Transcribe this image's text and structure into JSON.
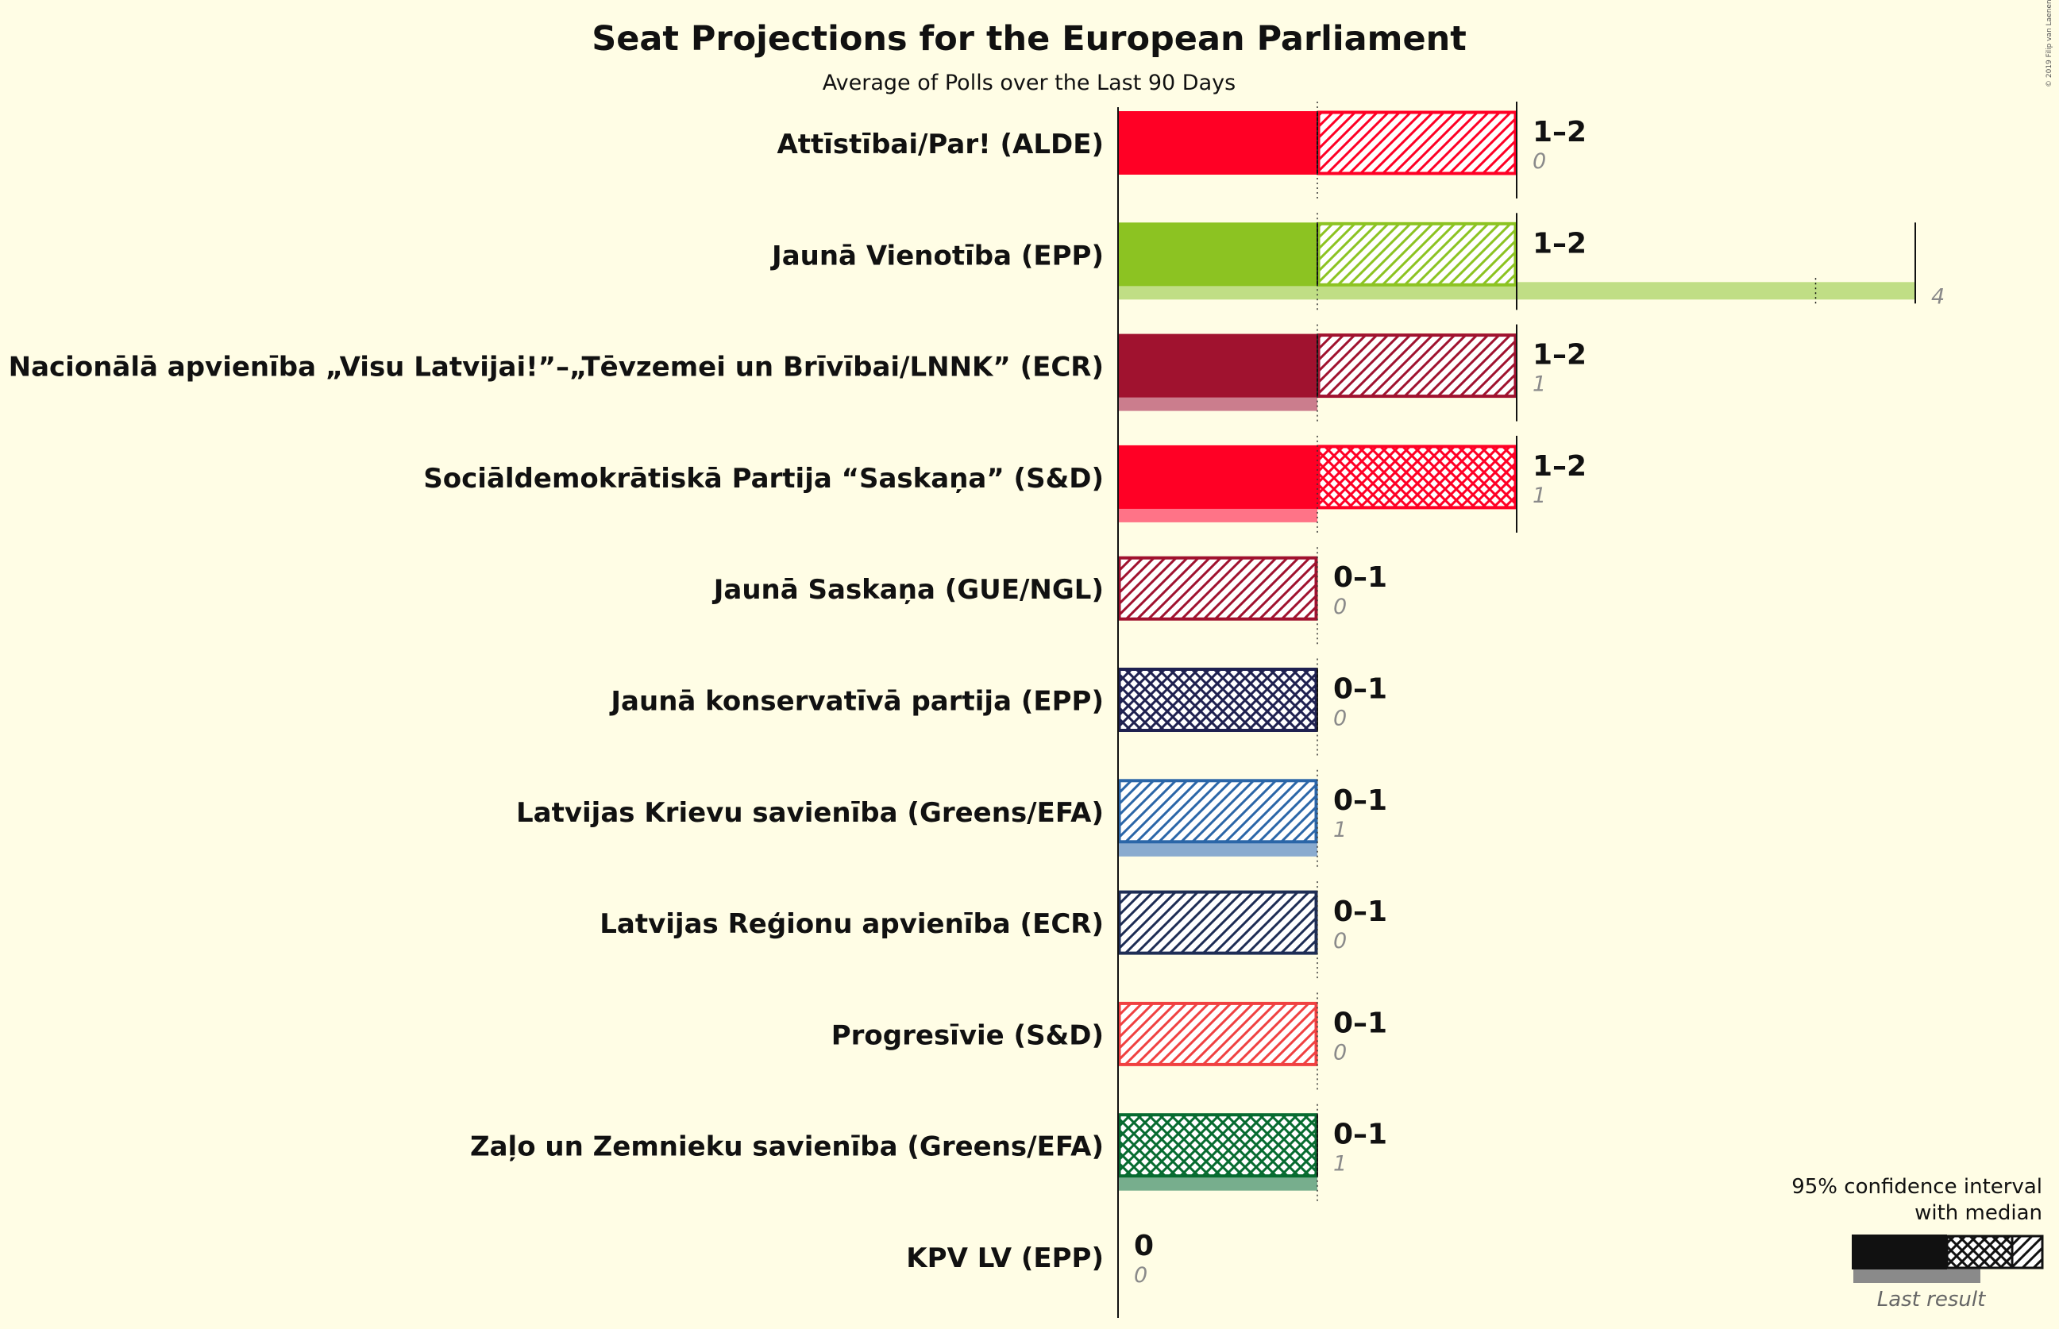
{
  "chart_data": {
    "type": "bar",
    "title": "Seat Projections for the European Parliament",
    "subtitle": "Average of Polls over the Last 90 Days",
    "xlim": [
      0,
      4
    ],
    "parties": [
      {
        "name": "Attīstībai/Par! (ALDE)",
        "low": 1,
        "median": 1,
        "high": 2,
        "last": 0,
        "range_label": "1–2",
        "last_label": "0",
        "color": "#FF0025",
        "pattern": "hatch"
      },
      {
        "name": "Jaunā Vienotība (EPP)",
        "low": 1,
        "median": 1,
        "high": 2,
        "last": 4,
        "range_label": "1–2",
        "last_label": "4",
        "color": "#8CC322",
        "pattern": "hatch"
      },
      {
        "name": "Nacionālā apvienība „Visu Latvijai!”–„Tēvzemei un Brīvībai/LNNK” (ECR)",
        "low": 1,
        "median": 1,
        "high": 2,
        "last": 1,
        "range_label": "1–2",
        "last_label": "1",
        "color": "#A0122F",
        "pattern": "hatch"
      },
      {
        "name": "Sociāldemokrātiskā Partija “Saskaņa” (S&D)",
        "low": 1,
        "median": 2,
        "high": 2,
        "last": 1,
        "range_label": "1–2",
        "last_label": "1",
        "color": "#FF0025",
        "pattern": "cross"
      },
      {
        "name": "Jaunā Saskaņa (GUE/NGL)",
        "low": 0,
        "median": 0,
        "high": 1,
        "last": 0,
        "range_label": "0–1",
        "last_label": "0",
        "color": "#A0122F",
        "pattern": "hatch"
      },
      {
        "name": "Jaunā konservatīvā partija (EPP)",
        "low": 0,
        "median": 1,
        "high": 1,
        "last": 0,
        "range_label": "0–1",
        "last_label": "0",
        "color": "#1F2150",
        "pattern": "cross"
      },
      {
        "name": "Latvijas Krievu savienība (Greens/EFA)",
        "low": 0,
        "median": 0,
        "high": 1,
        "last": 1,
        "range_label": "0–1",
        "last_label": "1",
        "color": "#2B66A8",
        "pattern": "hatch"
      },
      {
        "name": "Latvijas Reģionu apvienība (ECR)",
        "low": 0,
        "median": 0,
        "high": 1,
        "last": 0,
        "range_label": "0–1",
        "last_label": "0",
        "color": "#1E2D55",
        "pattern": "hatch"
      },
      {
        "name": "Progresīvie (S&D)",
        "low": 0,
        "median": 0,
        "high": 1,
        "last": 0,
        "range_label": "0–1",
        "last_label": "0",
        "color": "#F04141",
        "pattern": "hatch"
      },
      {
        "name": "Zaļo un Zemnieku savienība (Greens/EFA)",
        "low": 0,
        "median": 1,
        "high": 1,
        "last": 1,
        "range_label": "0–1",
        "last_label": "1",
        "color": "#076B30",
        "pattern": "cross"
      },
      {
        "name": "KPV LV (EPP)",
        "low": 0,
        "median": 0,
        "high": 0,
        "last": 0,
        "range_label": "0",
        "last_label": "0",
        "color": "#111111",
        "pattern": "hatch"
      }
    ],
    "legend": {
      "title_line1": "95% confidence interval",
      "title_line2": "with median",
      "last_result": "Last result"
    },
    "copyright": "© 2019 Filip van Laenen"
  }
}
